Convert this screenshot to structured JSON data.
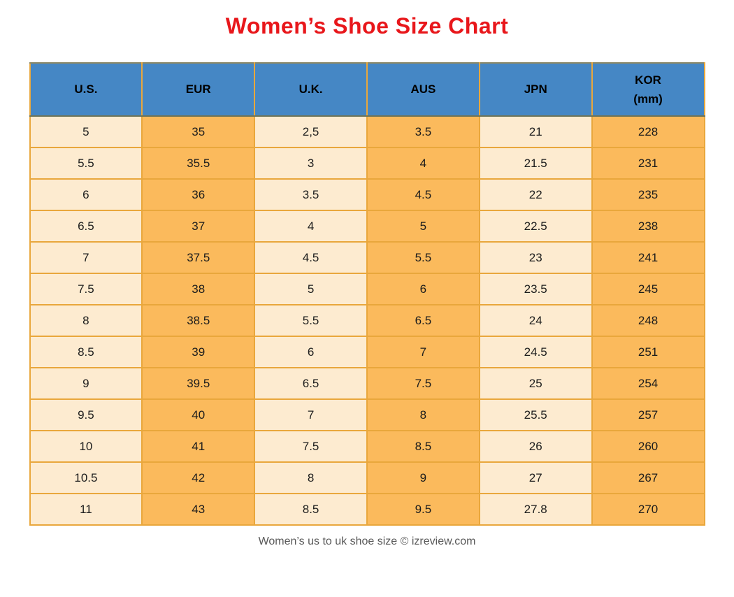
{
  "title": {
    "text": "Women’s Shoe Size Chart",
    "color": "#e8171b"
  },
  "footer": {
    "caption": "Women’s us to uk shoe size © izreview.com",
    "color": "#595959"
  },
  "colors": {
    "header_bg": "#4587c5",
    "column_light": "#fdebd0",
    "column_orange": "#fbba5c",
    "border_gold": "#e9a73c",
    "header_bottom_border": "#6e7458",
    "title_red": "#e8171b",
    "footer_gray": "#595959",
    "text_black": "#1c1c1c"
  },
  "chart_data": {
    "type": "table",
    "title": "Women’s Shoe Size Chart",
    "columns": [
      "U.S.",
      "EUR",
      "U.K.",
      "AUS",
      "JPN",
      "KOR\n(mm)"
    ],
    "rows": [
      [
        "5",
        "35",
        "2,5",
        "3.5",
        "21",
        "228"
      ],
      [
        "5.5",
        "35.5",
        "3",
        "4",
        "21.5",
        "231"
      ],
      [
        "6",
        "36",
        "3.5",
        "4.5",
        "22",
        "235"
      ],
      [
        "6.5",
        "37",
        "4",
        "5",
        "22.5",
        "238"
      ],
      [
        "7",
        "37.5",
        "4.5",
        "5.5",
        "23",
        "241"
      ],
      [
        "7.5",
        "38",
        "5",
        "6",
        "23.5",
        "245"
      ],
      [
        "8",
        "38.5",
        "5.5",
        "6.5",
        "24",
        "248"
      ],
      [
        "8.5",
        "39",
        "6",
        "7",
        "24.5",
        "251"
      ],
      [
        "9",
        "39.5",
        "6.5",
        "7.5",
        "25",
        "254"
      ],
      [
        "9.5",
        "40",
        "7",
        "8",
        "25.5",
        "257"
      ],
      [
        "10",
        "41",
        "7.5",
        "8.5",
        "26",
        "260"
      ],
      [
        "10.5",
        "42",
        "8",
        "9",
        "27",
        "267"
      ],
      [
        "11",
        "43",
        "8.5",
        "9.5",
        "27.8",
        "270"
      ]
    ]
  }
}
